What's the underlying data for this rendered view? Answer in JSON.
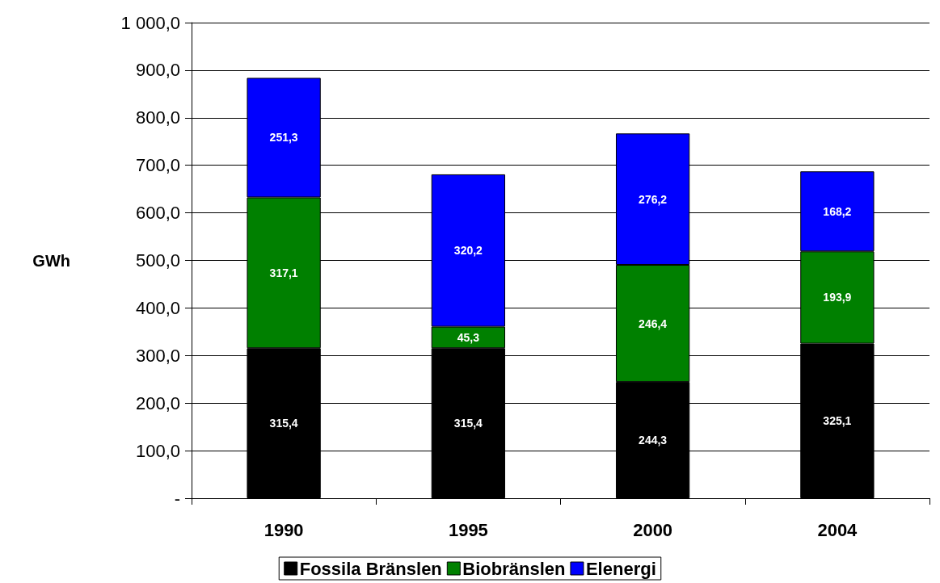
{
  "chart_data": {
    "type": "bar",
    "stacked": true,
    "ylabel": "GWh",
    "categories": [
      "1990",
      "1995",
      "2000",
      "2004"
    ],
    "series": [
      {
        "name": "Fossila Bränslen",
        "color": "#000000",
        "values": [
          315.4,
          315.4,
          244.3,
          325.1
        ],
        "value_labels": [
          "315,4",
          "315,4",
          "244,3",
          "325,1"
        ]
      },
      {
        "name": "Biobränslen",
        "color": "#008000",
        "values": [
          317.1,
          45.3,
          246.4,
          193.9
        ],
        "value_labels": [
          "317,1",
          "45,3",
          "246,4",
          "193,9"
        ]
      },
      {
        "name": "Elenergi",
        "color": "#0000ff",
        "values": [
          251.3,
          320.2,
          276.2,
          168.2
        ],
        "value_labels": [
          "251,3",
          "320,2",
          "276,2",
          "168,2"
        ]
      }
    ],
    "ylim": [
      0,
      1000
    ],
    "yticks": [
      {
        "value": 0,
        "label": "-"
      },
      {
        "value": 100,
        "label": "100,0"
      },
      {
        "value": 200,
        "label": "200,0"
      },
      {
        "value": 300,
        "label": "300,0"
      },
      {
        "value": 400,
        "label": "400,0"
      },
      {
        "value": 500,
        "label": "500,0"
      },
      {
        "value": 600,
        "label": "600,0"
      },
      {
        "value": 700,
        "label": "700,0"
      },
      {
        "value": 800,
        "label": "800,0"
      },
      {
        "value": 900,
        "label": "900,0"
      },
      {
        "value": 1000,
        "label": "1 000,0"
      }
    ],
    "grid": "y",
    "legend": "bottom"
  }
}
